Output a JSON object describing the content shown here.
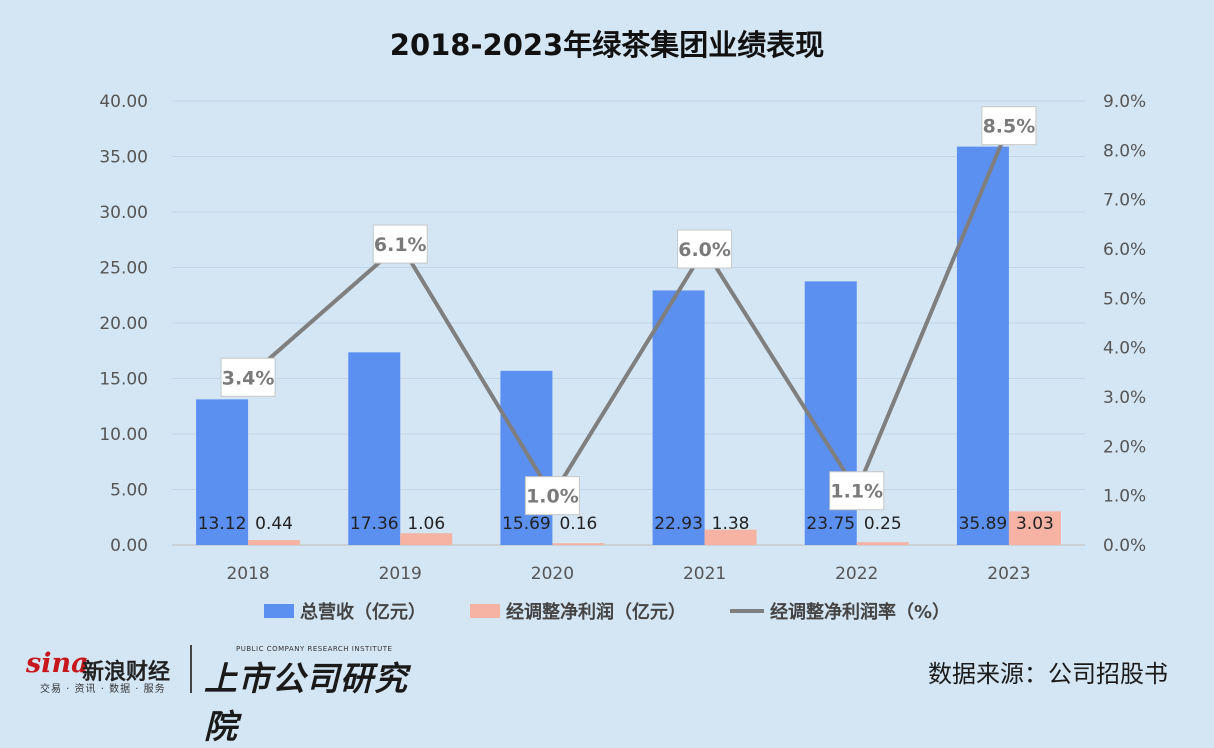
{
  "title": "2018-2023年绿茶集团业绩表现",
  "source_text": "数据来源：公司招股书",
  "branding": {
    "sina_mark": "sina",
    "sina_name": "新浪财经",
    "sina_sub": "交易 · 资讯 · 数据 · 服务",
    "brand_sub": "PUBLIC COMPANY RESEARCH INSTITUTE",
    "brand_name": "上市公司研究院"
  },
  "colors": {
    "revenue": "#5b8ff0",
    "profit": "#f6b2a2",
    "margin": "#7f7f7f"
  },
  "chart_data": {
    "type": "bar",
    "categories": [
      "2018",
      "2019",
      "2020",
      "2021",
      "2022",
      "2023"
    ],
    "series": [
      {
        "name": "总营收（亿元）",
        "type": "bar",
        "axis": "left",
        "values": [
          13.12,
          17.36,
          15.69,
          22.93,
          23.75,
          35.89
        ],
        "labels": [
          "13.12",
          "17.36",
          "15.69",
          "22.93",
          "23.75",
          "35.89"
        ]
      },
      {
        "name": "经调整净利润（亿元）",
        "type": "bar",
        "axis": "left",
        "values": [
          0.44,
          1.06,
          0.16,
          1.38,
          0.25,
          3.03
        ],
        "labels": [
          "0.44",
          "1.06",
          "0.16",
          "1.38",
          "0.25",
          "3.03"
        ]
      },
      {
        "name": "经调整净利润率（%）",
        "type": "line",
        "axis": "right",
        "values": [
          3.4,
          6.1,
          1.0,
          6.0,
          1.1,
          8.5
        ],
        "labels": [
          "3.4%",
          "6.1%",
          "1.0%",
          "6.0%",
          "1.1%",
          "8.5%"
        ]
      }
    ],
    "y_left": {
      "ylim": [
        0,
        40
      ],
      "ticks": [
        "0.00",
        "5.00",
        "10.00",
        "15.00",
        "20.00",
        "25.00",
        "30.00",
        "35.00",
        "40.00"
      ]
    },
    "y_right": {
      "ylim": [
        0,
        9
      ],
      "ticks": [
        "0.0%",
        "1.0%",
        "2.0%",
        "3.0%",
        "4.0%",
        "5.0%",
        "6.0%",
        "7.0%",
        "8.0%",
        "9.0%"
      ]
    },
    "grid": true,
    "legend_position": "bottom"
  }
}
